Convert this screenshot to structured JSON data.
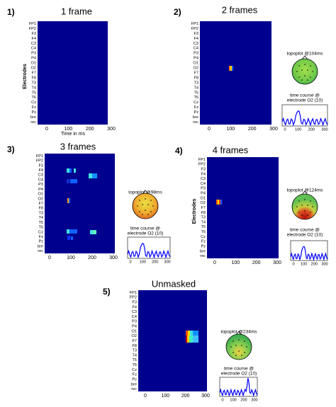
{
  "panels": [
    {
      "label": "1)",
      "title": "1 frame",
      "xlabel": "Time in ms",
      "ylabel": "Electrodes",
      "electrodes": [
        "FP1",
        "FP2",
        "F3",
        "F4",
        "C3",
        "C4",
        "P3",
        "P4",
        "O1",
        "O2",
        "F7",
        "F8",
        "T3",
        "T4",
        "T5",
        "T6",
        "Cz",
        "Fz",
        "Pz",
        "bre",
        "rec"
      ],
      "xticks": [
        0,
        100,
        200,
        300
      ]
    },
    {
      "label": "2)",
      "title": "2 frames",
      "electrodes": [
        "FP1",
        "FP2",
        "F3",
        "F4",
        "C3",
        "C4",
        "P3",
        "P4",
        "O1",
        "O2",
        "F7",
        "F8",
        "T3",
        "T4",
        "T5",
        "T6",
        "Cz",
        "Fz",
        "Pz",
        "bre",
        "rec"
      ],
      "xticks": [
        0,
        100,
        200,
        300
      ],
      "topoplot": "topoplot @104ms",
      "time_course": [
        "time course @",
        "electrode O2 (10)"
      ],
      "time_course_xticks": [
        0,
        100,
        200,
        300
      ]
    },
    {
      "label": "3)",
      "title": "3 frames",
      "electrodes": [
        "FP1",
        "FP2",
        "F3",
        "F4",
        "C3",
        "C4",
        "P3",
        "P4",
        "O1",
        "O2",
        "F7",
        "F8",
        "T3",
        "T4",
        "T5",
        "T6",
        "Cz",
        "Fz",
        "Pz",
        "bre",
        "rec"
      ],
      "xticks": [
        0,
        100,
        200,
        300
      ],
      "topoplot": "topoplot @98ms",
      "time_course": [
        "time course @",
        "electrode O2 (10)"
      ],
      "time_course_xticks": [
        0,
        100,
        200,
        300
      ]
    },
    {
      "label": "4)",
      "title": "4 frames",
      "ylabel": "Electrodes",
      "electrodes": [
        "FP1",
        "FP2",
        "F3",
        "F4",
        "C3",
        "C4",
        "P3",
        "P4",
        "O1",
        "O2",
        "F7",
        "F8",
        "T3",
        "T4",
        "T5",
        "T6",
        "Cz",
        "Fz",
        "Pz",
        "bre",
        "rec"
      ],
      "xticks": [
        0,
        100,
        200,
        300
      ],
      "topoplot": "topoplot @124ms",
      "time_course": [
        "time course @",
        "electrode O2 (10)"
      ],
      "time_course_xticks": [
        0,
        100,
        200,
        300
      ]
    },
    {
      "label": "5)",
      "title": "Unmasked",
      "electrodes": [
        "FP1",
        "FP2",
        "F3",
        "F4",
        "C3",
        "C4",
        "P3",
        "P4",
        "O1",
        "O2",
        "F7",
        "F8",
        "T3",
        "T4",
        "T5",
        "T6",
        "Cz",
        "Fz",
        "Pz",
        "bre",
        "rec"
      ],
      "xticks": [
        0,
        100,
        200,
        300
      ],
      "topoplot": "topoplot @234ms",
      "time_course": [
        "time course @",
        "electrode O2 (10)"
      ],
      "time_course_xticks": [
        0,
        100,
        200,
        300
      ]
    }
  ]
}
